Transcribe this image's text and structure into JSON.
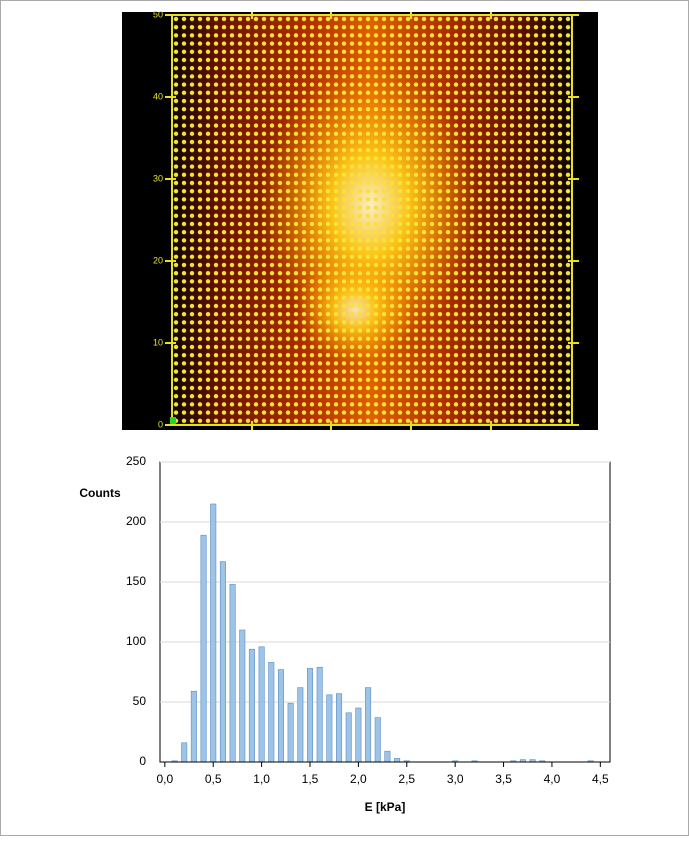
{
  "chart_data": [
    {
      "type": "heatmap",
      "ylim": [
        0,
        50
      ],
      "yticks": [
        0,
        10,
        20,
        30,
        40,
        50
      ],
      "tick_color": "#e8e020"
    },
    {
      "type": "histogram",
      "ylabel": "Counts",
      "xlabel": "E [kPa]",
      "bins": [
        -0.05,
        0.05,
        0.15,
        0.25,
        0.35,
        0.45,
        0.55,
        0.65,
        0.75,
        0.85,
        0.95,
        1.05,
        1.15,
        1.25,
        1.35,
        1.45,
        1.55,
        1.65,
        1.75,
        1.85,
        1.95,
        2.05,
        2.15,
        2.25,
        2.35,
        2.45,
        2.55,
        2.65,
        2.75,
        2.85,
        2.95,
        3.05,
        3.15,
        3.25,
        3.35,
        3.45,
        3.55,
        3.65,
        3.75,
        3.85,
        3.95,
        4.05,
        4.15,
        4.25,
        4.35,
        4.45
      ],
      "values": [
        0,
        1,
        16,
        59,
        189,
        215,
        167,
        148,
        110,
        94,
        96,
        83,
        77,
        49,
        62,
        78,
        79,
        56,
        57,
        41,
        45,
        62,
        37,
        9,
        3,
        1,
        0,
        0,
        0,
        0,
        1,
        0,
        1,
        0,
        0,
        0,
        1,
        2,
        2,
        1,
        0,
        0,
        0,
        0,
        1
      ],
      "color": "#9dc3e6",
      "edge_color": "#5b8fc7",
      "xlim": [
        -0.05,
        4.6
      ],
      "ylim": [
        0,
        250
      ],
      "xticks": [
        {
          "value": 0,
          "label": "0,0"
        },
        {
          "value": 0.5,
          "label": "0,5"
        },
        {
          "value": 1,
          "label": "1,0"
        },
        {
          "value": 1.5,
          "label": "1,5"
        },
        {
          "value": 2,
          "label": "2,0"
        },
        {
          "value": 2.5,
          "label": "2,5"
        },
        {
          "value": 3,
          "label": "3,0"
        },
        {
          "value": 3.5,
          "label": "3,5"
        },
        {
          "value": 4,
          "label": "4,0"
        },
        {
          "value": 4.5,
          "label": "4,5"
        }
      ],
      "yticks": [
        0,
        50,
        100,
        150,
        200,
        250
      ],
      "grid": true
    }
  ]
}
